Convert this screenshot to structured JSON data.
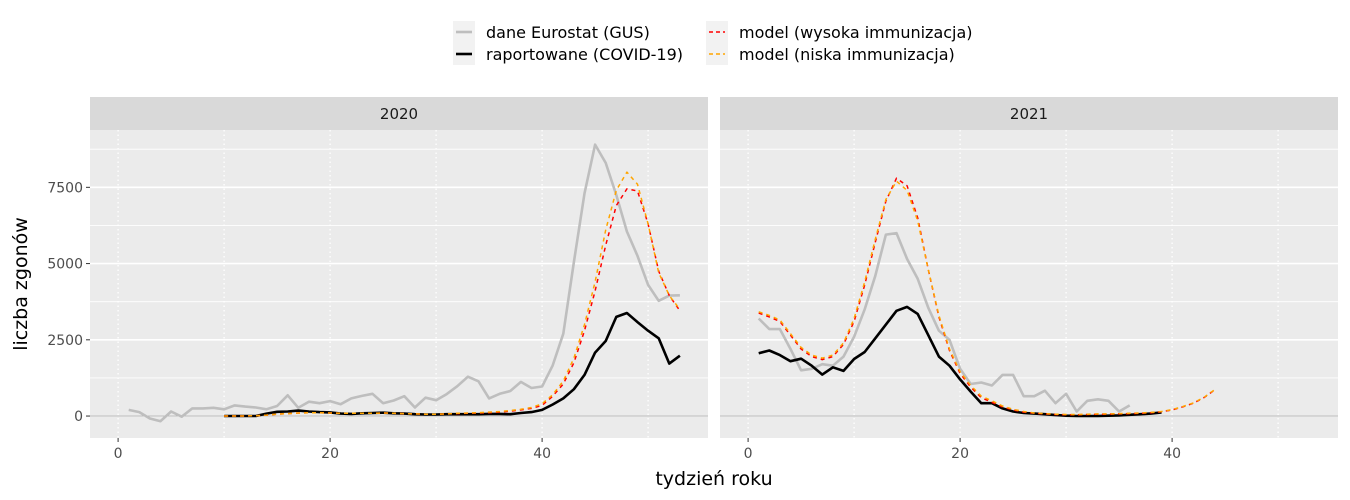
{
  "chart_data": {
    "type": "line",
    "xlabel": "tydzień roku",
    "ylabel": "liczba zgonów",
    "xlim": [
      -2.65,
      55.65
    ],
    "ylim": [
      -720,
      9380
    ],
    "xticks": [
      0,
      20,
      40
    ],
    "yticks": [
      0,
      2500,
      5000,
      7500
    ],
    "xtick_labels": [
      "0",
      "20",
      "40"
    ],
    "ytick_labels": [
      "0",
      "2500",
      "5000",
      "7500"
    ],
    "grid": true,
    "legend": {
      "placement": "top",
      "entries": [
        {
          "label": "dane Eurostat (GUS)",
          "color": "#bebebe",
          "dash": false
        },
        {
          "label": "raportowane (COVID-19)",
          "color": "#000000",
          "dash": false
        },
        {
          "label": "model (wysoka immunizacja)",
          "color": "#ff0000",
          "dash": true
        },
        {
          "label": "model (niska immunizacja)",
          "color": "#ffa500",
          "dash": true
        }
      ]
    },
    "panels": [
      {
        "title": "2020",
        "series": [
          {
            "name": "dane Eurostat (GUS)",
            "x_start": 1,
            "values": [
              200,
              130,
              -80,
              -170,
              150,
              -20,
              250,
              250,
              270,
              220,
              350,
              310,
              280,
              220,
              330,
              680,
              270,
              470,
              420,
              490,
              390,
              580,
              660,
              730,
              420,
              510,
              650,
              280,
              600,
              520,
              720,
              980,
              1290,
              1140,
              580,
              730,
              820,
              1120,
              920,
              970,
              1660,
              2700,
              5050,
              7300,
              8900,
              8300,
              7250,
              6050,
              5250,
              4300,
              3780,
              3950,
              3960
            ]
          },
          {
            "name": "raportowane (COVID-19)",
            "x_start": 10,
            "values": [
              0,
              0,
              0,
              0,
              80,
              140,
              150,
              180,
              150,
              130,
              120,
              80,
              70,
              90,
              100,
              110,
              90,
              80,
              60,
              50,
              50,
              60,
              60,
              60,
              60,
              70,
              70,
              60,
              100,
              130,
              200,
              380,
              580,
              880,
              1350,
              2080,
              2460,
              3250,
              3380,
              3080,
              2800,
              2550,
              1720,
              1980
            ]
          },
          {
            "name": "model (wysoka immunizacja)",
            "x_start": 10,
            "values": [
              0,
              0,
              0,
              10,
              30,
              60,
              80,
              100,
              110,
              110,
              100,
              90,
              90,
              90,
              90,
              100,
              90,
              80,
              70,
              60,
              60,
              70,
              80,
              90,
              100,
              110,
              130,
              160,
              200,
              250,
              350,
              650,
              1050,
              1750,
              2800,
              4100,
              5600,
              6900,
              7450,
              7380,
              6300,
              4750,
              3950,
              3450
            ]
          },
          {
            "name": "model (niska immunizacja)",
            "x_start": 10,
            "values": [
              0,
              0,
              0,
              10,
              30,
              60,
              80,
              100,
              110,
              110,
              100,
              90,
              90,
              90,
              90,
              100,
              90,
              80,
              70,
              60,
              60,
              70,
              90,
              100,
              110,
              130,
              150,
              180,
              220,
              280,
              400,
              700,
              1150,
              1900,
              3000,
              4400,
              6100,
              7400,
              8000,
              7600,
              6300,
              4700,
              3950,
              3500
            ]
          }
        ]
      },
      {
        "title": "2021",
        "series": [
          {
            "name": "dane Eurostat (GUS)",
            "x_start": 1,
            "values": [
              3200,
              2850,
              2850,
              2200,
              1500,
              1550,
              1700,
              1650,
              1950,
              2600,
              3500,
              4600,
              5950,
              6000,
              5150,
              4500,
              3550,
              2800,
              2500,
              1550,
              1050,
              1100,
              1000,
              1350,
              1350,
              650,
              650,
              830,
              420,
              730,
              150,
              500,
              550,
              500,
              150,
              350
            ]
          },
          {
            "name": "raportowane (COVID-19)",
            "x_start": 1,
            "values": [
              2060,
              2150,
              2000,
              1800,
              1880,
              1650,
              1360,
              1600,
              1480,
              1870,
              2100,
              2550,
              3000,
              3450,
              3580,
              3350,
              2650,
              1950,
              1650,
              1200,
              800,
              420,
              420,
              250,
              150,
              100,
              80,
              60,
              30,
              10,
              0,
              0,
              0,
              10,
              20,
              40,
              60,
              80,
              120
            ]
          },
          {
            "name": "model (wysoka immunizacja)",
            "x_start": 1,
            "values": [
              3380,
              3250,
              3100,
              2650,
              2200,
              1950,
              1850,
              1950,
              2350,
              3100,
              4300,
              5700,
              7050,
              7800,
              7550,
              6500,
              4800,
              3250,
              2150,
              1400,
              950,
              600,
              450,
              300,
              200,
              130,
              90,
              70,
              50,
              40,
              40,
              50,
              60,
              60,
              70,
              80,
              90,
              110,
              140,
              200,
              300,
              420,
              600,
              850
            ]
          },
          {
            "name": "model (niska immunizacja)",
            "x_start": 1,
            "values": [
              3420,
              3300,
              3150,
              2700,
              2250,
              2000,
              1900,
              2000,
              2400,
              3200,
              4400,
              5800,
              7100,
              7700,
              7400,
              6400,
              4800,
              3300,
              2200,
              1450,
              1000,
              650,
              500,
              330,
              220,
              150,
              100,
              80,
              60,
              50,
              50,
              60,
              70,
              70,
              80,
              90,
              100,
              120,
              150,
              210,
              310,
              430,
              610,
              860
            ]
          }
        ]
      }
    ]
  }
}
